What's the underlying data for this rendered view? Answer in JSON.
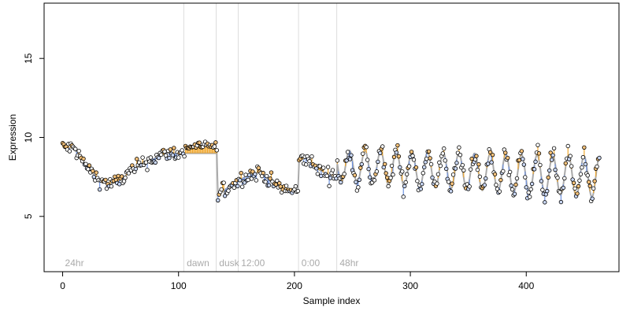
{
  "chart_data": {
    "type": "scatter",
    "xlabel": "Sample index",
    "ylabel": "Expression",
    "xlim": [
      -16,
      480
    ],
    "ylim": [
      1.5,
      18.5
    ],
    "xticks": [
      0,
      100,
      200,
      300,
      400
    ],
    "yticks": [
      5,
      10,
      15
    ],
    "grid": false,
    "colors": {
      "above": "#f0a830",
      "below": "#6f93e0",
      "fit": "#aaaaaa",
      "segment_line": "#dddddd",
      "segment_label": "#aaaaaa"
    },
    "segments": [
      {
        "label": "24hr",
        "start": 0
      },
      {
        "label": "dawn",
        "start": 105
      },
      {
        "label": "dusk",
        "start": 133
      },
      {
        "label": "12:00",
        "start": 152
      },
      {
        "label": "0:00",
        "start": 204
      },
      {
        "label": "48hr",
        "start": 237
      }
    ],
    "fit_knots": [
      [
        0,
        9.4
      ],
      [
        10,
        9.3
      ],
      [
        20,
        8.2
      ],
      [
        30,
        7.4
      ],
      [
        40,
        7.0
      ],
      [
        50,
        7.3
      ],
      [
        60,
        7.9
      ],
      [
        70,
        8.4
      ],
      [
        80,
        8.7
      ],
      [
        90,
        9.0
      ],
      [
        100,
        9.0
      ],
      [
        105,
        9.0
      ],
      [
        133,
        9.0
      ],
      [
        134,
        6.3
      ],
      [
        140,
        6.7
      ],
      [
        150,
        7.2
      ],
      [
        160,
        7.6
      ],
      [
        170,
        7.8
      ],
      [
        180,
        7.2
      ],
      [
        190,
        6.7
      ],
      [
        200,
        6.6
      ],
      [
        203,
        6.6
      ],
      [
        204,
        8.5
      ],
      [
        210,
        8.7
      ],
      [
        220,
        8.0
      ],
      [
        230,
        7.6
      ],
      [
        236,
        7.6
      ]
    ],
    "periodic": {
      "start": 237,
      "end": 464,
      "period": 13.5,
      "phase": 244,
      "mean_start": 8.2,
      "mean_end": 7.5,
      "amp_start": 1.0,
      "amp_end": 1.3
    },
    "point_count": 464
  }
}
